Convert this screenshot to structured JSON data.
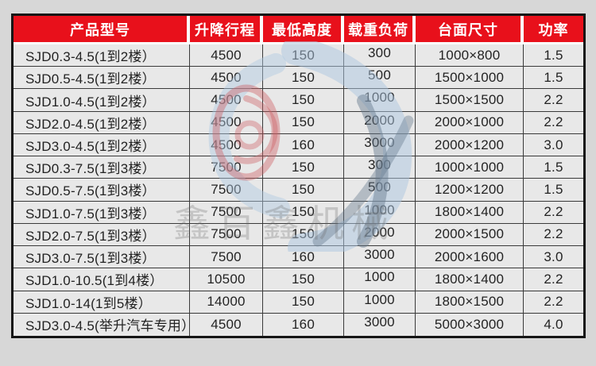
{
  "chart_data": {
    "type": "table",
    "title": "产品型号规格表",
    "columns": [
      "产品型号",
      "升降行程",
      "最低高度",
      "载重负荷",
      "台面尺寸",
      "功率"
    ],
    "rows": [
      [
        "SJD0.3-4.5(1到2楼）",
        "4500",
        "150",
        "300",
        "1000×800",
        "1.5"
      ],
      [
        "SJD0.5-4.5(1到2楼）",
        "4500",
        "150",
        "500",
        "1500×1000",
        "1.5"
      ],
      [
        "SJD1.0-4.5(1到2楼）",
        "4500",
        "150",
        "1000",
        "1500×1500",
        "2.2"
      ],
      [
        "SJD2.0-4.5(1到2楼）",
        "4500",
        "150",
        "2000",
        "2000×1000",
        "2.2"
      ],
      [
        "SJD3.0-4.5(1到2楼）",
        "4500",
        "160",
        "3000",
        "2000×1200",
        "3.0"
      ],
      [
        "SJD0.3-7.5(1到3楼）",
        "7500",
        "150",
        "300",
        "1000×1000",
        "1.5"
      ],
      [
        "SJD0.5-7.5(1到3楼）",
        "7500",
        "150",
        "500",
        "1200×1200",
        "1.5"
      ],
      [
        "SJD1.0-7.5(1到3楼）",
        "7500",
        "150",
        "1000",
        "1800×1400",
        "2.2"
      ],
      [
        "SJD2.0-7.5(1到3楼）",
        "7500",
        "150",
        "2000",
        "2000×1500",
        "2.2"
      ],
      [
        "SJD3.0-7.5(1到3楼）",
        "7500",
        "160",
        "3000",
        "2000×1600",
        "3.0"
      ],
      [
        "SJD1.0-10.5(1到4楼）",
        "10500",
        "150",
        "1000",
        "1800×1400",
        "2.2"
      ],
      [
        "SJD1.0-14(1到5楼）",
        "14000",
        "150",
        "1000",
        "1800×1500",
        "2.2"
      ],
      [
        "SJD3.0-4.5(举升汽车专用）",
        "4500",
        "160",
        "3000",
        "5000×3000",
        "4.0"
      ]
    ]
  },
  "watermark": {
    "text": "鑫百鑫机械"
  },
  "colors": {
    "header_red": "#e8101b",
    "header_text": "#ffffff",
    "cell_text": "#232323",
    "cell_background": "#e8e8e8",
    "grid_line": "#3a3a3a",
    "outer_border": "#151515",
    "page_background": "#d7d7d7",
    "watermark_blue": "#aac6e0",
    "watermark_dark": "#64788c",
    "watermark_red": "#cd5f64"
  }
}
